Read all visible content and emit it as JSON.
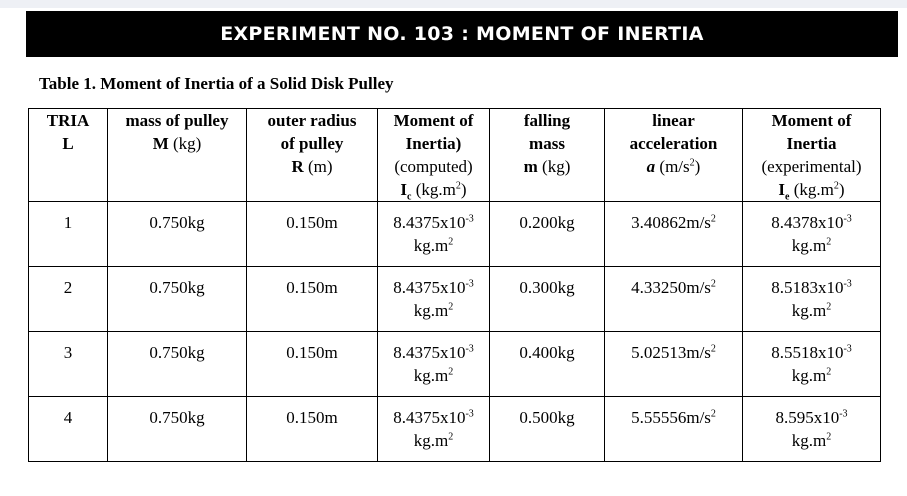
{
  "banner": "EXPERIMENT NO. 103 :  MOMENT OF INERTIA",
  "caption": "Table 1.  Moment of Inertia of a Solid Disk Pulley",
  "headers": {
    "trial": {
      "l1": "TRIA",
      "l2": "L"
    },
    "mass_pulley": {
      "l1": "mass of pulley",
      "sym": "M",
      "unit": " (kg)"
    },
    "radius": {
      "l1": "outer radius",
      "l2": "of pulley",
      "sym": "R",
      "unit": " (m)"
    },
    "moi_comp": {
      "l1": "Moment of",
      "l2": "Inertia)",
      "l3": "(computed)",
      "sym": "I",
      "sub": "c",
      "unit_pre": " (kg.m",
      "sup": "2",
      "unit_post": ")"
    },
    "falling": {
      "l1": "falling",
      "l2": "mass",
      "sym": "m",
      "unit": " (kg)"
    },
    "accel": {
      "l1": "linear",
      "l2": "acceleration",
      "sym": "a",
      "unit_pre": " (m/s",
      "sup": "2",
      "unit_post": ")"
    },
    "moi_exp": {
      "l1": "Moment of",
      "l2": "Inertia",
      "l3": "(experimental)",
      "sym": "I",
      "sub": "e",
      "unit_pre": " (kg.m",
      "sup": "2",
      "unit_post": ")"
    }
  },
  "units": {
    "exp": "-3",
    "kgm": "kg.m",
    "sq": "2"
  },
  "rows": [
    {
      "trial": "1",
      "mass": "0.750kg",
      "radius": "0.150m",
      "moi_c": "8.4375x10",
      "falling": "0.200kg",
      "accel": "3.40862m/s",
      "moi_e": "8.4378x10"
    },
    {
      "trial": "2",
      "mass": "0.750kg",
      "radius": "0.150m",
      "moi_c": "8.4375x10",
      "falling": "0.300kg",
      "accel": "4.33250m/s",
      "moi_e": "8.5183x10"
    },
    {
      "trial": "3",
      "mass": "0.750kg",
      "radius": "0.150m",
      "moi_c": "8.4375x10",
      "falling": "0.400kg",
      "accel": "5.02513m/s",
      "moi_e": "8.5518x10"
    },
    {
      "trial": "4",
      "mass": "0.750kg",
      "radius": "0.150m",
      "moi_c": "8.4375x10",
      "falling": "0.500kg",
      "accel": "5.55556m/s",
      "moi_e": "8.595x10"
    }
  ]
}
